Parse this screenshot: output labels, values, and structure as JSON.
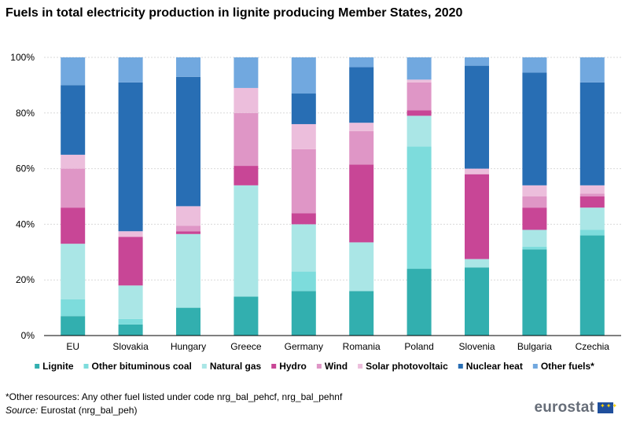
{
  "title": "Fuels in total electricity production in lignite producing Member States, 2020",
  "footnote": "*Other resources: Any other fuel listed under code nrg_bal_pehcf, nrg_bal_pehnf",
  "source_label": "Source:",
  "source_text": "Eurostat (nrg_bal_peh)",
  "logo_text": "eurostat",
  "chart_data": {
    "type": "bar",
    "stacked": true,
    "percent": true,
    "title": "Fuels in total electricity production in lignite producing Member States, 2020",
    "xlabel": "",
    "ylabel": "",
    "ylim": [
      0,
      100
    ],
    "yticks": [
      "0%",
      "20%",
      "40%",
      "60%",
      "80%",
      "100%"
    ],
    "categories": [
      "EU",
      "Slovakia",
      "Hungary",
      "Greece",
      "Germany",
      "Romania",
      "Poland",
      "Slovenia",
      "Bulgaria",
      "Czechia"
    ],
    "series": [
      {
        "name": "Lignite",
        "color": "#32afaf",
        "values": [
          7,
          4,
          10,
          14,
          16,
          16,
          24,
          24.5,
          31,
          36
        ]
      },
      {
        "name": "Other bituminous coal",
        "color": "#7ddcdc",
        "values": [
          6,
          2,
          0,
          0,
          7,
          0,
          44,
          0,
          1,
          2
        ]
      },
      {
        "name": "Natural gas",
        "color": "#aae6e6",
        "values": [
          20,
          12,
          26.5,
          40,
          17,
          17.5,
          11,
          3,
          6,
          8
        ]
      },
      {
        "name": "Hydro",
        "color": "#c84696",
        "values": [
          13,
          17.5,
          1,
          7,
          4,
          28,
          2,
          30.5,
          8,
          4
        ]
      },
      {
        "name": "Wind",
        "color": "#df96c6",
        "values": [
          14,
          0,
          2,
          19,
          23,
          12,
          10,
          0,
          4,
          1
        ]
      },
      {
        "name": "Solar photovoltaic",
        "color": "#ecbedc",
        "values": [
          5,
          2,
          7,
          9,
          9,
          3,
          1,
          2,
          4,
          3
        ]
      },
      {
        "name": "Nuclear heat",
        "color": "#286eb4",
        "values": [
          25,
          53.5,
          46.5,
          0,
          11,
          20,
          0,
          37,
          40.5,
          37
        ]
      },
      {
        "name": "Other fuels*",
        "color": "#71a8df",
        "values": [
          10,
          9,
          7,
          11,
          13,
          3.5,
          8,
          3,
          5.5,
          9
        ]
      }
    ],
    "legend_position": "bottom"
  }
}
